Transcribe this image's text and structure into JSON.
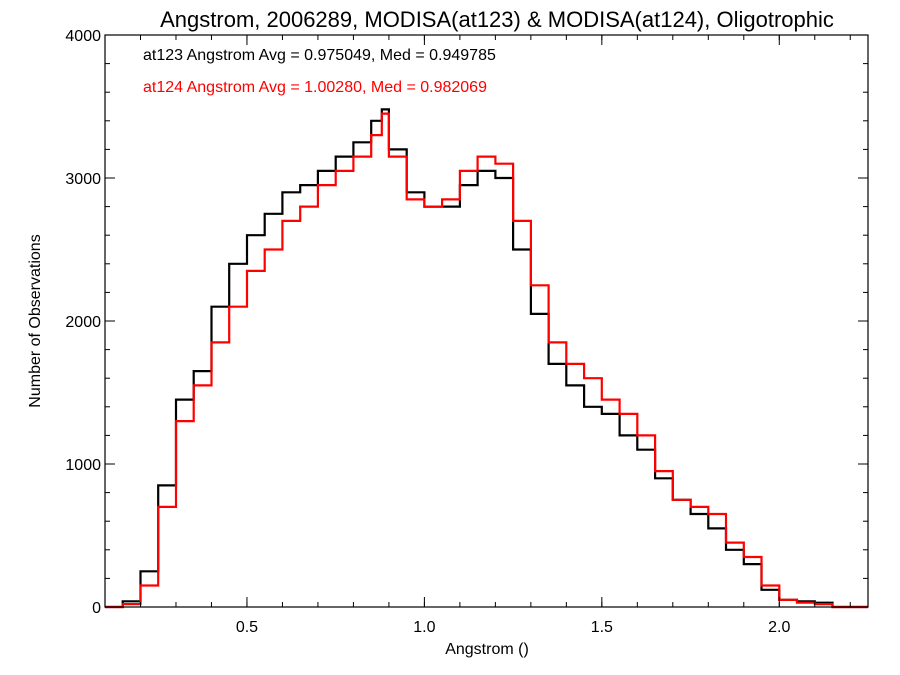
{
  "chart_data": {
    "type": "histogram",
    "title": "Angstrom, 2006289, MODISA(at123) & MODISA(at124), Oligotrophic",
    "xlabel": "Angstrom ()",
    "ylabel": "Number of Observations",
    "xlim": [
      0.1,
      2.25
    ],
    "ylim": [
      0,
      4000
    ],
    "x_ticks": [
      0.5,
      1.0,
      1.5,
      2.0
    ],
    "x_tick_labels": [
      "0.5",
      "1.0",
      "1.5",
      "2.0"
    ],
    "y_ticks": [
      0,
      1000,
      2000,
      3000,
      4000
    ],
    "y_tick_labels": [
      "0",
      "1000",
      "2000",
      "3000",
      "4000"
    ],
    "x_minor_step": 0.1,
    "y_minor_step": 200,
    "grid": false,
    "legend_position": "top-left",
    "annotations": [
      "at123 Angstrom Avg = 0.975049, Med = 0.949785",
      "at124 Angstrom Avg = 1.00280, Med = 0.982069"
    ],
    "series": [
      {
        "name": "at123",
        "color": "#000000",
        "x": [
          0.1,
          0.15,
          0.2,
          0.25,
          0.3,
          0.35,
          0.4,
          0.45,
          0.5,
          0.55,
          0.6,
          0.65,
          0.7,
          0.75,
          0.8,
          0.85,
          0.88,
          0.9,
          0.95,
          1.0,
          1.05,
          1.1,
          1.15,
          1.2,
          1.25,
          1.3,
          1.35,
          1.4,
          1.45,
          1.5,
          1.55,
          1.6,
          1.65,
          1.7,
          1.75,
          1.8,
          1.85,
          1.9,
          1.95,
          2.0,
          2.05,
          2.1,
          2.15,
          2.2,
          2.25
        ],
        "y": [
          0,
          40,
          250,
          850,
          1450,
          1650,
          2100,
          2400,
          2600,
          2750,
          2900,
          2950,
          3050,
          3150,
          3250,
          3400,
          3480,
          3200,
          2900,
          2800,
          2800,
          2950,
          3050,
          3000,
          2500,
          2050,
          1700,
          1550,
          1400,
          1350,
          1200,
          1100,
          900,
          750,
          650,
          550,
          400,
          300,
          120,
          50,
          40,
          30,
          0,
          0,
          0
        ]
      },
      {
        "name": "at124",
        "color": "#ff0000",
        "x": [
          0.1,
          0.15,
          0.2,
          0.25,
          0.3,
          0.35,
          0.4,
          0.45,
          0.5,
          0.55,
          0.6,
          0.65,
          0.7,
          0.75,
          0.8,
          0.85,
          0.88,
          0.9,
          0.95,
          1.0,
          1.05,
          1.1,
          1.15,
          1.2,
          1.25,
          1.3,
          1.35,
          1.4,
          1.45,
          1.5,
          1.55,
          1.6,
          1.65,
          1.7,
          1.75,
          1.8,
          1.85,
          1.9,
          1.95,
          2.0,
          2.05,
          2.1,
          2.15,
          2.2,
          2.25
        ],
        "y": [
          0,
          20,
          150,
          700,
          1300,
          1550,
          1850,
          2100,
          2350,
          2500,
          2700,
          2800,
          2950,
          3050,
          3150,
          3300,
          3450,
          3150,
          2850,
          2800,
          2850,
          3050,
          3150,
          3100,
          2700,
          2250,
          1850,
          1700,
          1600,
          1450,
          1350,
          1200,
          950,
          750,
          700,
          650,
          450,
          350,
          150,
          50,
          30,
          20,
          0,
          0,
          0
        ]
      }
    ]
  }
}
